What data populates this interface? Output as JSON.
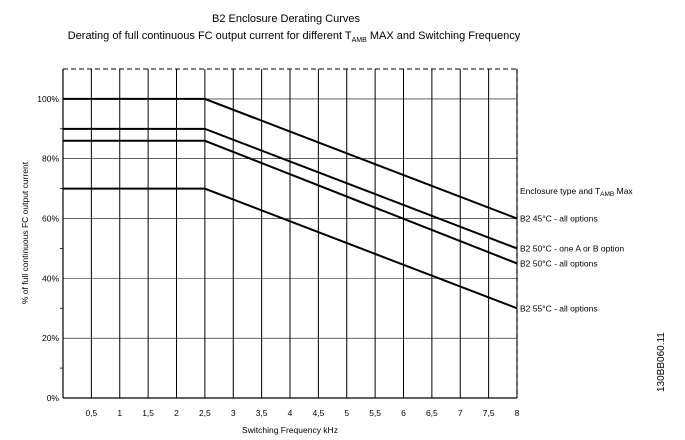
{
  "chart_data": {
    "type": "line",
    "title": "B2 Enclosure Derating Curves",
    "subtitle_prefix": "Derating of full continuous FC output current for different T",
    "subtitle_sub": "AMB",
    "subtitle_suffix": " MAX and Switching Frequency",
    "xlabel": "Switching Frequency kHz",
    "ylabel": "% of full continuous FC output current",
    "xlim": [
      0,
      8
    ],
    "ylim": [
      0,
      110
    ],
    "x_ticks": [
      {
        "value": 0.5,
        "label": "0,5"
      },
      {
        "value": 1,
        "label": "1"
      },
      {
        "value": 1.5,
        "label": "1,5"
      },
      {
        "value": 2,
        "label": "2"
      },
      {
        "value": 2.5,
        "label": "2,5"
      },
      {
        "value": 3,
        "label": "3"
      },
      {
        "value": 3.5,
        "label": "3,5"
      },
      {
        "value": 4,
        "label": "4"
      },
      {
        "value": 4.5,
        "label": "4,5"
      },
      {
        "value": 5,
        "label": "5"
      },
      {
        "value": 5.5,
        "label": "5,5"
      },
      {
        "value": 6,
        "label": "6"
      },
      {
        "value": 6.5,
        "label": "6,5"
      },
      {
        "value": 7,
        "label": "7"
      },
      {
        "value": 7.5,
        "label": "7,5"
      },
      {
        "value": 8,
        "label": "8"
      }
    ],
    "y_ticks": [
      {
        "value": 0,
        "label": "0%"
      },
      {
        "value": 20,
        "label": "20%"
      },
      {
        "value": 40,
        "label": "40%"
      },
      {
        "value": 60,
        "label": "60%"
      },
      {
        "value": 80,
        "label": "80%"
      },
      {
        "value": 100,
        "label": "100%"
      }
    ],
    "legend_title_prefix": "Enclosure type and T",
    "legend_title_sub": "AMB",
    "legend_title_suffix": " Max",
    "legend_placement": "right",
    "grid": true,
    "series": [
      {
        "name": "B2 45°C - all options",
        "x": [
          0,
          2.5,
          8
        ],
        "y": [
          100,
          100,
          60
        ]
      },
      {
        "name": "B2 50°C - one A or B option",
        "x": [
          0,
          2.5,
          8
        ],
        "y": [
          90,
          90,
          50
        ]
      },
      {
        "name": "B2 50°C - all options",
        "x": [
          0,
          2.5,
          8
        ],
        "y": [
          86,
          86,
          45
        ]
      },
      {
        "name": "B2 55°C - all options",
        "x": [
          0,
          2.5,
          8
        ],
        "y": [
          70,
          70,
          30
        ]
      }
    ],
    "figure_code": "130BB060.11"
  }
}
